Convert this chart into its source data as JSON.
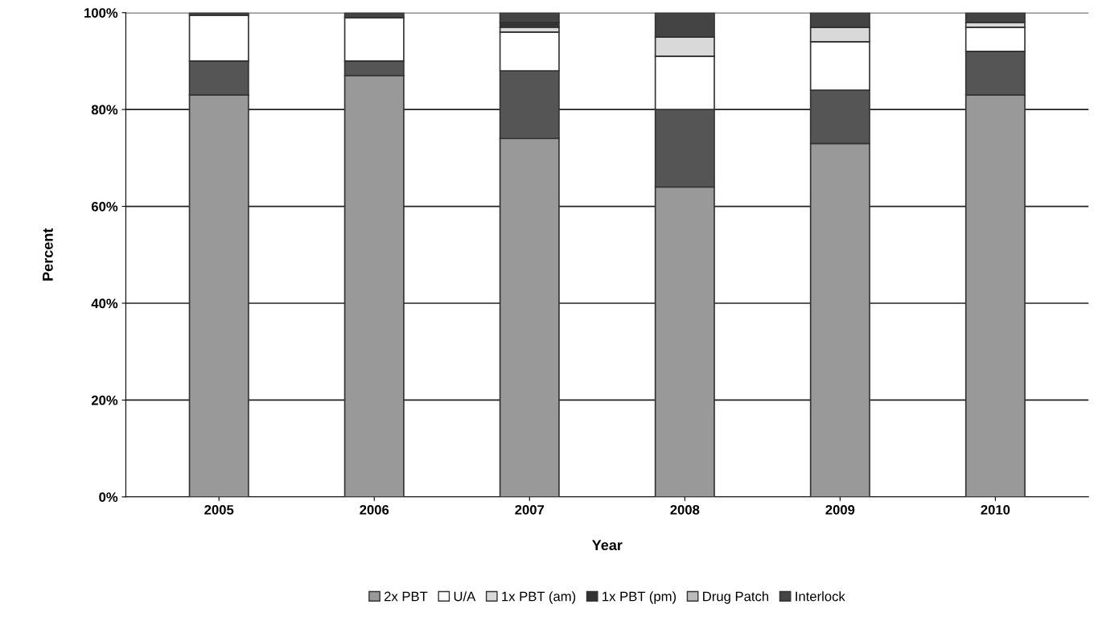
{
  "chart_data": {
    "type": "bar",
    "stacked": true,
    "xlabel": "Year",
    "ylabel": "Percent",
    "categories": [
      "2005",
      "2006",
      "2007",
      "2008",
      "2009",
      "2010"
    ],
    "series": [
      {
        "name": "2x PBT",
        "color": "#999999",
        "values": [
          83,
          87,
          74,
          64,
          73,
          83
        ]
      },
      {
        "color": "#555555",
        "values": [
          7,
          3,
          14,
          16,
          11,
          9
        ]
      },
      {
        "name": "U/A",
        "color": "#ffffff",
        "values": [
          9.5,
          9,
          8,
          11,
          10,
          5
        ]
      },
      {
        "name": "1x PBT (am)",
        "color": "#d9d9d9",
        "values": [
          0,
          0,
          1,
          4,
          3,
          1
        ]
      },
      {
        "name": "1x PBT (pm)",
        "color": "#333333",
        "values": [
          0,
          0,
          1,
          0,
          0,
          0
        ]
      },
      {
        "name": "Drug Patch",
        "color": "#bbbbbb",
        "values": [
          0,
          0,
          0,
          0,
          0,
          0
        ]
      },
      {
        "name": "Interlock",
        "color": "#444444",
        "values": [
          0.5,
          1,
          2,
          5,
          3,
          2
        ]
      }
    ],
    "ylim": [
      0,
      100
    ],
    "yticks": [
      {
        "value": 0,
        "label": "0%"
      },
      {
        "value": 20,
        "label": "20%"
      },
      {
        "value": 40,
        "label": "40%"
      },
      {
        "value": 60,
        "label": "60%"
      },
      {
        "value": 80,
        "label": "80%"
      },
      {
        "value": 100,
        "label": "100%"
      }
    ],
    "grid": "y",
    "legend": "bottom"
  }
}
